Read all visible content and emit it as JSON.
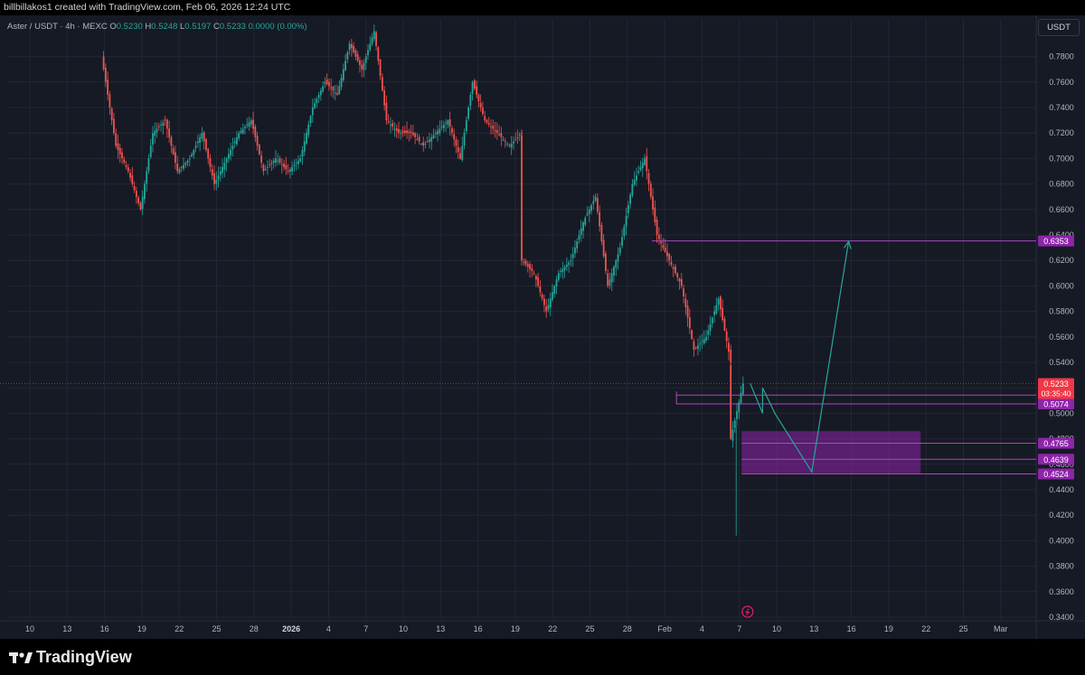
{
  "header": {
    "caption": "billbillakos1 created with TradingView.com, Feb 06, 2026 12:24 UTC"
  },
  "legend": {
    "symbol": "Aster / USDT · 4h · MEXC",
    "open_label": "O",
    "open": "0.5230",
    "high_label": "H",
    "high": "0.5248",
    "low_label": "L",
    "low": "0.5197",
    "close_label": "C",
    "close": "0.5233",
    "change": "0.0000 (0.00%)"
  },
  "currency_button": "USDT",
  "brand": {
    "name": "TradingView"
  },
  "colors": {
    "background": "#161a25",
    "grid": "#232734",
    "up": "#26a69a",
    "down": "#ef5350",
    "zone": "#8e24aa",
    "level_line": "#ab47bc",
    "projection": "#26a69a",
    "last_price": "#f23645",
    "axis_text": "#b2b5be"
  },
  "icons": {
    "logo": "tradingview-logo",
    "event_marker": "lightning-icon"
  },
  "chart_data": {
    "type": "candlestick",
    "title": "",
    "xlabel": "",
    "ylabel": "",
    "x_tick_labels": [
      "10",
      "13",
      "16",
      "19",
      "22",
      "25",
      "28",
      "2026",
      "4",
      "7",
      "10",
      "13",
      "16",
      "19",
      "22",
      "25",
      "28",
      "Feb",
      "4",
      "7",
      "10",
      "13",
      "16",
      "19",
      "22",
      "25",
      "Mar"
    ],
    "y_tick_labels": [
      "0.7800",
      "0.7600",
      "0.7400",
      "0.7200",
      "0.7000",
      "0.6800",
      "0.6600",
      "0.6400",
      "0.6200",
      "0.6000",
      "0.5800",
      "0.5600",
      "0.5400",
      "0.5200",
      "0.5000",
      "0.4800",
      "0.4600",
      "0.4400",
      "0.4200",
      "0.4000",
      "0.3800",
      "0.3600",
      "0.3400"
    ],
    "ylim": [
      0.335,
      0.806
    ],
    "grid": true,
    "last_price": {
      "value": 0.5233,
      "label": "0.5233",
      "countdown": "03:35:40"
    },
    "price_levels": [
      {
        "value": 0.6353,
        "label": "0.6353"
      },
      {
        "value": 0.5143,
        "label": "0.5143"
      },
      {
        "value": 0.5074,
        "label": "0.5074"
      },
      {
        "value": 0.4765,
        "label": "0.4765"
      },
      {
        "value": 0.4639,
        "label": "0.4639"
      },
      {
        "value": 0.4524,
        "label": "0.4524"
      }
    ],
    "demand_zone": {
      "top": 0.486,
      "bottom": 0.4524
    },
    "path_points": [
      {
        "date": "2025-12-16",
        "price": 0.78
      },
      {
        "date": "2025-12-16",
        "price": 0.77
      },
      {
        "date": "2025-12-17",
        "price": 0.71
      },
      {
        "date": "2025-12-18",
        "price": 0.69
      },
      {
        "date": "2025-12-19",
        "price": 0.66
      },
      {
        "date": "2025-12-20",
        "price": 0.72
      },
      {
        "date": "2025-12-21",
        "price": 0.73
      },
      {
        "date": "2025-12-22",
        "price": 0.69
      },
      {
        "date": "2025-12-23",
        "price": 0.7
      },
      {
        "date": "2025-12-24",
        "price": 0.72
      },
      {
        "date": "2025-12-25",
        "price": 0.68
      },
      {
        "date": "2025-12-26",
        "price": 0.7
      },
      {
        "date": "2025-12-27",
        "price": 0.72
      },
      {
        "date": "2025-12-28",
        "price": 0.73
      },
      {
        "date": "2025-12-29",
        "price": 0.69
      },
      {
        "date": "2025-12-30",
        "price": 0.7
      },
      {
        "date": "2025-12-31",
        "price": 0.69
      },
      {
        "date": "2026-01-01",
        "price": 0.7
      },
      {
        "date": "2026-01-02",
        "price": 0.74
      },
      {
        "date": "2026-01-03",
        "price": 0.76
      },
      {
        "date": "2026-01-04",
        "price": 0.75
      },
      {
        "date": "2026-01-05",
        "price": 0.79
      },
      {
        "date": "2026-01-06",
        "price": 0.77
      },
      {
        "date": "2026-01-07",
        "price": 0.8
      },
      {
        "date": "2026-01-08",
        "price": 0.73
      },
      {
        "date": "2026-01-09",
        "price": 0.72
      },
      {
        "date": "2026-01-10",
        "price": 0.72
      },
      {
        "date": "2026-01-11",
        "price": 0.71
      },
      {
        "date": "2026-01-12",
        "price": 0.72
      },
      {
        "date": "2026-01-13",
        "price": 0.73
      },
      {
        "date": "2026-01-14",
        "price": 0.7
      },
      {
        "date": "2026-01-15",
        "price": 0.76
      },
      {
        "date": "2026-01-16",
        "price": 0.73
      },
      {
        "date": "2026-01-17",
        "price": 0.72
      },
      {
        "date": "2026-01-18",
        "price": 0.71
      },
      {
        "date": "2026-01-19",
        "price": 0.72
      },
      {
        "date": "2026-01-19",
        "price": 0.62
      },
      {
        "date": "2026-01-20",
        "price": 0.61
      },
      {
        "date": "2026-01-21",
        "price": 0.58
      },
      {
        "date": "2026-01-22",
        "price": 0.61
      },
      {
        "date": "2026-01-23",
        "price": 0.62
      },
      {
        "date": "2026-01-24",
        "price": 0.65
      },
      {
        "date": "2026-01-25",
        "price": 0.67
      },
      {
        "date": "2026-01-26",
        "price": 0.6
      },
      {
        "date": "2026-01-27",
        "price": 0.63
      },
      {
        "date": "2026-01-28",
        "price": 0.68
      },
      {
        "date": "2026-01-29",
        "price": 0.7
      },
      {
        "date": "2026-01-30",
        "price": 0.64
      },
      {
        "date": "2026-01-31",
        "price": 0.62
      },
      {
        "date": "2026-02-01",
        "price": 0.6
      },
      {
        "date": "2026-02-02",
        "price": 0.55
      },
      {
        "date": "2026-02-03",
        "price": 0.56
      },
      {
        "date": "2026-02-04",
        "price": 0.59
      },
      {
        "date": "2026-02-05",
        "price": 0.54
      },
      {
        "date": "2026-02-05",
        "price": 0.48
      },
      {
        "date": "2026-02-06",
        "price": 0.5233
      }
    ],
    "projection_path": [
      {
        "date": "2026-02-06",
        "price": 0.5233
      },
      {
        "date": "2026-02-07",
        "price": 0.5
      },
      {
        "date": "2026-02-07",
        "price": 0.52
      },
      {
        "date": "2026-02-08",
        "price": 0.5
      },
      {
        "date": "2026-02-11",
        "price": 0.454
      },
      {
        "date": "2026-02-13",
        "price": 0.575
      },
      {
        "date": "2026-02-14",
        "price": 0.635
      }
    ]
  }
}
